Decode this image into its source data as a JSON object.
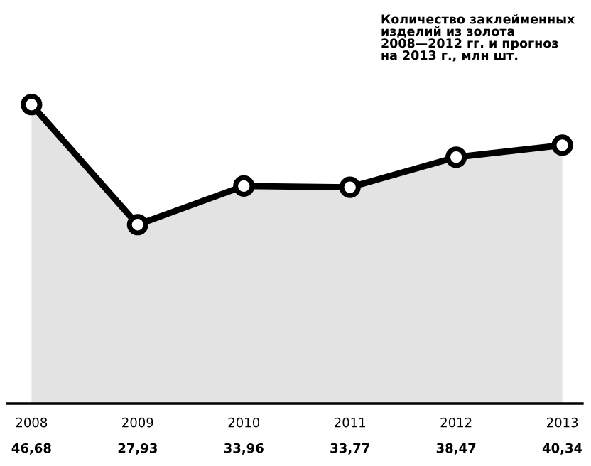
{
  "chart_data": {
    "type": "area",
    "title": "Количество заклейменных\nизделий из золота\n2008—2012 гг. и прогноз\nна 2013 г., млн шт.",
    "categories": [
      "2008",
      "2009",
      "2010",
      "2011",
      "2012",
      "2013"
    ],
    "series": [
      {
        "color": "#000000",
        "values": [
          46.68,
          27.93,
          33.96,
          33.77,
          38.47,
          40.34
        ],
        "value_labels": [
          "46,68",
          "27,93",
          "33,96",
          "33,77",
          "38,47",
          "40,34"
        ]
      }
    ],
    "marker": "circle",
    "line_style": "solid"
  }
}
